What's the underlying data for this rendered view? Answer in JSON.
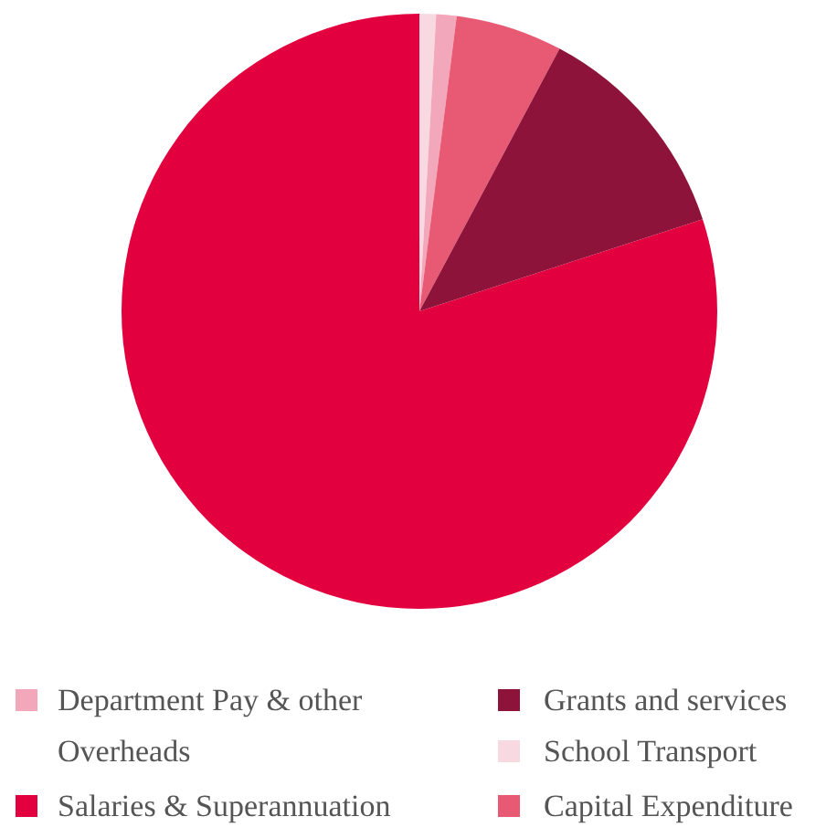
{
  "chart_data": {
    "type": "pie",
    "categories": [
      "School Transport",
      "Department Pay & other Overheads",
      "Capital Expenditure",
      "Grants and services",
      "Salaries & Superannuation"
    ],
    "values": [
      0.9,
      1.1,
      5.8,
      12.2,
      80.0
    ],
    "colors": [
      "#f9d9e1",
      "#f3a7bb",
      "#e85a73",
      "#8d133b",
      "#e2003f"
    ],
    "legend": "bottom"
  }
}
